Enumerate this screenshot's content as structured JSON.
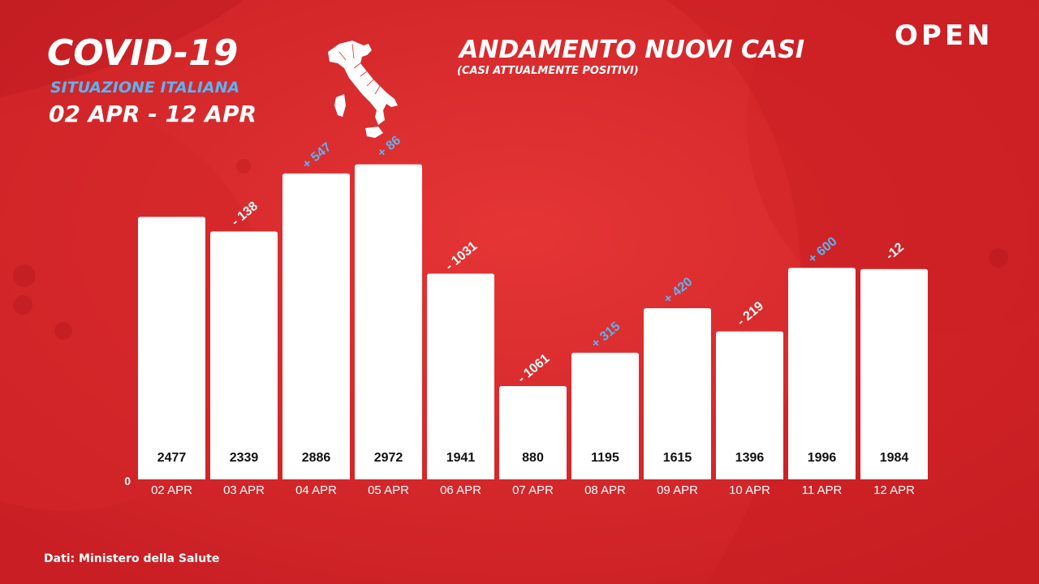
{
  "header": {
    "title": "COVID-19",
    "subtitle": "SITUAZIONE ITALIANA",
    "dates": "02 APR - 12 APR"
  },
  "chart_header": {
    "title": "ANDAMENTO NUOVI CASI",
    "subtitle": "(CASI ATTUALMENTE POSITIVI)"
  },
  "brand": "OPEN",
  "source": "Dati: Ministero della Salute",
  "colors": {
    "background": "#e12b2b",
    "bar": "#ffffff",
    "positive_change": "#5cb3f2",
    "negative_change": "#ffffff"
  },
  "chart_data": {
    "type": "bar",
    "categories": [
      "02 APR",
      "03 APR",
      "04 APR",
      "05 APR",
      "06 APR",
      "07 APR",
      "08 APR",
      "09 APR",
      "10 APR",
      "11 APR",
      "12 APR"
    ],
    "values": [
      2477,
      2339,
      2886,
      2972,
      1941,
      880,
      1195,
      1615,
      1396,
      1996,
      1984
    ],
    "change_labels": [
      "",
      "- 138",
      "+ 547",
      "+ 86",
      "- 1031",
      "- 1061",
      "+ 315",
      "+ 420",
      "- 219",
      "+ 600",
      "-12"
    ],
    "y_tick_labels": [
      "0"
    ],
    "ylim": [
      0,
      3000
    ],
    "grid": false,
    "legend": "none"
  }
}
